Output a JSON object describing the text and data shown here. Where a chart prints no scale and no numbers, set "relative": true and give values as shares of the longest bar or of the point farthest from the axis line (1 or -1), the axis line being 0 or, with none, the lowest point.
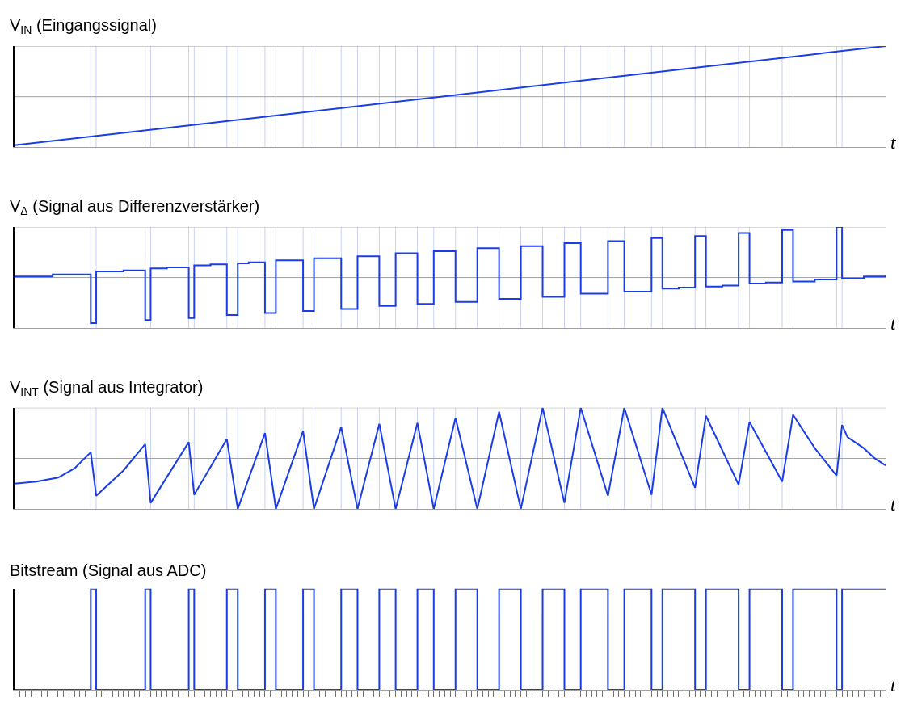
{
  "chart_data": [
    {
      "type": "line",
      "title": "V$_{IN}$ (Eingangssignal)",
      "xlabel": "t",
      "relative": true,
      "marker": "none",
      "line_style": "solid",
      "categories": [
        null,
        null,
        null,
        null,
        null,
        null,
        null,
        null,
        null,
        null,
        null,
        null,
        null,
        null,
        null,
        null,
        null,
        null,
        null,
        null,
        null,
        null,
        null,
        null,
        null,
        null,
        null,
        null,
        null,
        null,
        null,
        null,
        null,
        null,
        null,
        null,
        null,
        null,
        null,
        null,
        null,
        null,
        null,
        null,
        null,
        null,
        null,
        null,
        null,
        null,
        null,
        null,
        null,
        null,
        null,
        null,
        null,
        null,
        null,
        null,
        null,
        null,
        null,
        null,
        null,
        null,
        null,
        null,
        null,
        null,
        null,
        null,
        null,
        null,
        null,
        null,
        null,
        null,
        null,
        null,
        null,
        null,
        null,
        null,
        null,
        null,
        null,
        null,
        null,
        null,
        null,
        null,
        null,
        null,
        null,
        null,
        null,
        null,
        null,
        null,
        null,
        null,
        null,
        null,
        null,
        null,
        null,
        null,
        null,
        null,
        null,
        null,
        null,
        null,
        null,
        null,
        null,
        null,
        null,
        null,
        null,
        null,
        null,
        null,
        null,
        null,
        null,
        null,
        null,
        null,
        null,
        null,
        null,
        null,
        null,
        null,
        null,
        null,
        null,
        null,
        null,
        null,
        null,
        null,
        null,
        null,
        null,
        null,
        null,
        null,
        null,
        null,
        null,
        null,
        null,
        null,
        null,
        null,
        null,
        null,
        null
      ],
      "series": [
        {
          "color": "#1a3de8",
          "values": [
            0.02,
            null,
            null,
            null,
            null,
            null,
            null,
            null,
            null,
            null,
            null,
            null,
            null,
            null,
            null,
            null,
            null,
            null,
            null,
            null,
            null,
            null,
            null,
            null,
            null,
            null,
            null,
            null,
            null,
            null,
            null,
            null,
            null,
            null,
            null,
            null,
            null,
            null,
            null,
            null,
            null,
            null,
            null,
            null,
            null,
            null,
            null,
            null,
            null,
            null,
            null,
            null,
            null,
            null,
            null,
            null,
            null,
            null,
            null,
            null,
            null,
            null,
            null,
            null,
            null,
            null,
            null,
            null,
            null,
            null,
            null,
            null,
            null,
            null,
            null,
            null,
            null,
            null,
            null,
            null,
            null,
            null,
            null,
            null,
            null,
            null,
            null,
            null,
            null,
            null,
            null,
            null,
            null,
            null,
            null,
            null,
            null,
            null,
            null,
            null,
            null,
            null,
            null,
            null,
            null,
            null,
            null,
            null,
            null,
            null,
            null,
            null,
            null,
            null,
            null,
            null,
            null,
            null,
            null,
            null,
            null,
            null,
            null,
            null,
            null,
            null,
            null,
            null,
            null,
            null,
            null,
            null,
            null,
            null,
            null,
            null,
            null,
            null,
            null,
            null,
            null,
            null,
            null,
            null,
            null,
            null,
            null,
            null,
            null,
            null,
            null,
            null,
            null,
            null,
            null,
            null,
            null,
            null,
            null,
            null,
            1.0
          ]
        }
      ],
      "ref_lines": [
        {
          "axis": "y",
          "value": 0.5,
          "color": "#a0a0a0"
        },
        {
          "axis": "y",
          "value": 1.0,
          "color": "#a0a0a0"
        }
      ]
    },
    {
      "type": "step",
      "title": "V$_{Δ}$ (Signal aus Differenzverstärker)",
      "xlabel": "t",
      "relative": true,
      "marker": "none",
      "line_style": "solid",
      "categories": [
        null,
        null,
        null,
        null,
        null,
        null,
        null,
        null,
        null,
        null,
        null,
        null,
        null,
        null,
        null,
        null,
        null,
        null,
        null,
        null,
        null,
        null,
        null,
        null,
        null,
        null,
        null,
        null,
        null,
        null,
        null,
        null,
        null,
        null,
        null,
        null,
        null,
        null,
        null,
        null,
        null,
        null,
        null,
        null,
        null,
        null,
        null,
        null,
        null,
        null,
        null,
        null,
        null,
        null,
        null,
        null,
        null,
        null,
        null,
        null,
        null,
        null,
        null,
        null,
        null,
        null,
        null,
        null,
        null,
        null,
        null,
        null,
        null,
        null,
        null,
        null,
        null,
        null,
        null,
        null,
        null,
        null,
        null,
        null,
        null,
        null,
        null,
        null,
        null,
        null,
        null,
        null,
        null,
        null,
        null,
        null,
        null,
        null,
        null,
        null,
        null,
        null,
        null,
        null,
        null,
        null,
        null,
        null,
        null,
        null,
        null,
        null,
        null,
        null,
        null,
        null,
        null,
        null,
        null,
        null,
        null,
        null,
        null,
        null,
        null,
        null,
        null,
        null,
        null,
        null,
        null,
        null,
        null,
        null,
        null,
        null,
        null,
        null,
        null,
        null,
        null,
        null,
        null,
        null,
        null,
        null,
        null,
        null,
        null,
        null,
        null,
        null,
        null,
        null,
        null,
        null,
        null,
        null,
        null,
        null,
        null
      ],
      "series": [
        {
          "color": "#1a3de8",
          "values": [
            0.51,
            null,
            null,
            null,
            null,
            null,
            null,
            0.53,
            null,
            null,
            null,
            null,
            null,
            null,
            0.05,
            0.56,
            null,
            null,
            null,
            null,
            0.57,
            null,
            null,
            null,
            0.08,
            0.59,
            null,
            null,
            0.6,
            null,
            null,
            null,
            0.1,
            0.62,
            null,
            null,
            0.63,
            null,
            null,
            0.13,
            null,
            0.64,
            null,
            0.65,
            null,
            null,
            0.15,
            null,
            0.67,
            null,
            null,
            null,
            null,
            0.17,
            null,
            0.69,
            null,
            null,
            null,
            null,
            0.19,
            null,
            null,
            0.71,
            null,
            null,
            null,
            0.22,
            null,
            null,
            0.74,
            null,
            null,
            null,
            0.24,
            null,
            null,
            0.76,
            null,
            null,
            null,
            0.26,
            null,
            null,
            null,
            0.79,
            null,
            null,
            null,
            0.29,
            null,
            null,
            null,
            0.81,
            null,
            null,
            null,
            0.31,
            null,
            null,
            null,
            0.84,
            null,
            null,
            0.34,
            null,
            null,
            null,
            null,
            0.86,
            null,
            null,
            0.36,
            null,
            null,
            null,
            null,
            0.89,
            null,
            0.39,
            null,
            null,
            0.4,
            null,
            null,
            0.91,
            null,
            0.41,
            null,
            null,
            0.42,
            null,
            null,
            0.94,
            null,
            0.44,
            null,
            null,
            0.45,
            null,
            null,
            0.97,
            null,
            0.46,
            null,
            null,
            null,
            0.48,
            null,
            null,
            null,
            1.0,
            0.49,
            null,
            null,
            null,
            0.51,
            null,
            null,
            null,
            0.52
          ]
        }
      ],
      "ref_lines": [
        {
          "axis": "y",
          "value": 0.5,
          "color": "#a0a0a0"
        },
        {
          "axis": "y",
          "value": 1.0,
          "color": "#a0a0a0"
        }
      ]
    },
    {
      "type": "line",
      "title": "V$_{INT}$ (Signal aus Integrator)",
      "xlabel": "t",
      "relative": true,
      "marker": "none",
      "line_style": "solid",
      "categories": [
        null,
        null,
        null,
        null,
        null,
        null,
        null,
        null,
        null,
        null,
        null,
        null,
        null,
        null,
        null,
        null,
        null,
        null,
        null,
        null,
        null,
        null,
        null,
        null,
        null,
        null,
        null,
        null,
        null,
        null,
        null,
        null,
        null,
        null,
        null,
        null,
        null,
        null,
        null,
        null,
        null,
        null,
        null,
        null,
        null,
        null,
        null,
        null,
        null,
        null,
        null,
        null,
        null,
        null,
        null,
        null,
        null,
        null,
        null,
        null,
        null,
        null,
        null,
        null,
        null,
        null,
        null,
        null,
        null,
        null,
        null,
        null,
        null,
        null,
        null,
        null,
        null,
        null,
        null,
        null,
        null,
        null,
        null,
        null,
        null,
        null,
        null,
        null,
        null,
        null,
        null,
        null,
        null,
        null,
        null,
        null,
        null,
        null,
        null,
        null,
        null,
        null,
        null,
        null,
        null,
        null,
        null,
        null,
        null,
        null,
        null,
        null,
        null,
        null,
        null,
        null,
        null,
        null,
        null,
        null,
        null,
        null,
        null,
        null,
        null,
        null,
        null,
        null,
        null,
        null,
        null,
        null,
        null,
        null,
        null,
        null,
        null,
        null,
        null,
        null,
        null,
        null,
        null,
        null,
        null,
        null,
        null,
        null,
        null,
        null,
        null,
        null,
        null,
        null,
        null,
        null,
        null,
        null,
        null,
        null,
        null
      ],
      "series": [
        {
          "color": "#1a3de8",
          "values": [
            0.25,
            null,
            null,
            null,
            0.27,
            null,
            null,
            null,
            0.31,
            null,
            null,
            0.4,
            null,
            null,
            0.56,
            0.13,
            null,
            null,
            null,
            null,
            0.38,
            null,
            null,
            null,
            0.64,
            0.06,
            null,
            null,
            null,
            null,
            null,
            null,
            0.66,
            0.14,
            null,
            null,
            null,
            null,
            null,
            0.69,
            null,
            0,
            null,
            null,
            null,
            null,
            0.75,
            null,
            0,
            null,
            null,
            null,
            null,
            0.77,
            null,
            0,
            null,
            null,
            null,
            null,
            0.81,
            null,
            null,
            0,
            null,
            null,
            null,
            0.84,
            null,
            null,
            0,
            null,
            null,
            null,
            0.85,
            null,
            null,
            0,
            null,
            null,
            null,
            0.9,
            null,
            null,
            null,
            0,
            null,
            null,
            null,
            0.96,
            null,
            null,
            null,
            0,
            null,
            null,
            null,
            1.0,
            null,
            null,
            null,
            0.06,
            null,
            null,
            1.0,
            null,
            null,
            null,
            null,
            0.13,
            null,
            null,
            1.0,
            null,
            null,
            null,
            null,
            0.14,
            null,
            1.0,
            null,
            null,
            null,
            null,
            null,
            0.21,
            null,
            0.92,
            null,
            null,
            null,
            null,
            null,
            0.24,
            null,
            0.86,
            null,
            null,
            null,
            null,
            null,
            0.27,
            null,
            0.93,
            null,
            null,
            null,
            0.6,
            null,
            null,
            null,
            0.33,
            0.83,
            0.71,
            null,
            null,
            0.6,
            null,
            0.5,
            null,
            0.43
          ]
        }
      ],
      "ref_lines": [
        {
          "axis": "y",
          "value": 0.5,
          "color": "#a0a0a0"
        },
        {
          "axis": "y",
          "value": 1.0,
          "color": "#a0a0a0"
        }
      ]
    },
    {
      "type": "step",
      "title": "Bitstream (Signal aus ADC)",
      "xlabel": "t",
      "relative": true,
      "marker": "none",
      "line_style": "solid",
      "categories": [
        null,
        null,
        null,
        null,
        null,
        null,
        null,
        null,
        null,
        null,
        null,
        null,
        null,
        null,
        null,
        null,
        null,
        null,
        null,
        null,
        null,
        null,
        null,
        null,
        null,
        null,
        null,
        null,
        null,
        null,
        null,
        null,
        null,
        null,
        null,
        null,
        null,
        null,
        null,
        null,
        null,
        null,
        null,
        null,
        null,
        null,
        null,
        null,
        null,
        null,
        null,
        null,
        null,
        null,
        null,
        null,
        null,
        null,
        null,
        null,
        null,
        null,
        null,
        null,
        null,
        null,
        null,
        null,
        null,
        null,
        null,
        null,
        null,
        null,
        null,
        null,
        null,
        null,
        null,
        null,
        null,
        null,
        null,
        null,
        null,
        null,
        null,
        null,
        null,
        null,
        null,
        null,
        null,
        null,
        null,
        null,
        null,
        null,
        null,
        null,
        null,
        null,
        null,
        null,
        null,
        null,
        null,
        null,
        null,
        null,
        null,
        null,
        null,
        null,
        null,
        null,
        null,
        null,
        null,
        null,
        null,
        null,
        null,
        null,
        null,
        null,
        null,
        null,
        null,
        null,
        null,
        null,
        null,
        null,
        null,
        null,
        null,
        null,
        null,
        null,
        null,
        null,
        null,
        null,
        null,
        null,
        null,
        null,
        null,
        null,
        null,
        null,
        null,
        null,
        null,
        null,
        null,
        null,
        null,
        null,
        null
      ],
      "series": [
        {
          "color": "#1a3de8",
          "values": [
            0,
            null,
            null,
            null,
            null,
            null,
            null,
            null,
            null,
            null,
            null,
            null,
            null,
            null,
            1,
            0,
            null,
            null,
            null,
            null,
            null,
            null,
            null,
            null,
            1,
            0,
            null,
            null,
            null,
            null,
            null,
            null,
            1,
            0,
            null,
            null,
            null,
            null,
            null,
            1,
            null,
            0,
            null,
            null,
            null,
            null,
            1,
            null,
            0,
            null,
            null,
            null,
            null,
            1,
            null,
            0,
            null,
            null,
            null,
            null,
            1,
            null,
            null,
            0,
            null,
            null,
            null,
            1,
            null,
            null,
            0,
            null,
            null,
            null,
            1,
            null,
            null,
            0,
            null,
            null,
            null,
            1,
            null,
            null,
            null,
            0,
            null,
            null,
            null,
            1,
            null,
            null,
            null,
            0,
            null,
            null,
            null,
            1,
            null,
            null,
            null,
            0,
            null,
            null,
            1,
            null,
            null,
            null,
            null,
            0,
            null,
            null,
            1,
            null,
            null,
            null,
            null,
            0,
            null,
            1,
            null,
            null,
            null,
            null,
            null,
            0,
            null,
            1,
            null,
            null,
            null,
            null,
            null,
            0,
            null,
            1,
            null,
            null,
            null,
            null,
            null,
            0,
            null,
            1,
            null,
            null,
            null,
            null,
            null,
            null,
            null,
            0,
            1,
            null,
            null,
            null,
            null,
            null,
            null,
            null,
            1
          ]
        }
      ]
    }
  ]
}
